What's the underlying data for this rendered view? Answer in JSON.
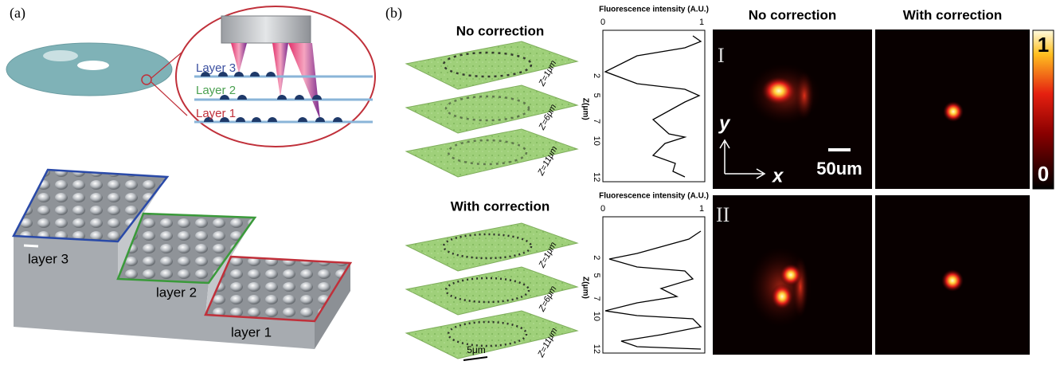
{
  "panel_a": {
    "label": "(a)",
    "zoom_layers": [
      "Layer 3",
      "Layer 2",
      "Layer 1"
    ],
    "stair_layers": [
      "layer 3",
      "layer 2",
      "layer 1"
    ]
  },
  "panel_b": {
    "label": "(b)",
    "stacks": [
      {
        "title": "No correction",
        "depths": [
          "Z=1μm",
          "Z=6μm",
          "Z=11μm"
        ]
      },
      {
        "title": "With correction",
        "depths": [
          "Z=1μm",
          "Z=6μm",
          "Z=11μm"
        ]
      }
    ],
    "stack_scale_bar": "5μm",
    "profiles": [
      {
        "x_label": "Fluorescence intensity (A.U.)",
        "x_ticks": [
          "0",
          "1"
        ],
        "y_label": "Z(μm)",
        "y_ticks": [
          "2",
          "5",
          "7",
          "10",
          "12"
        ]
      },
      {
        "x_label": "Fluorescence intensity (A.U.)",
        "x_ticks": [
          "0",
          "1"
        ],
        "y_label": "Z(μm)",
        "y_ticks": [
          "2",
          "5",
          "7",
          "10",
          "12"
        ]
      }
    ],
    "image_columns": [
      "No correction",
      "With correction"
    ],
    "rows": [
      "I",
      "II"
    ],
    "axis_labels": {
      "y": "y",
      "x": "x"
    },
    "image_scale_bar": "50um",
    "colorbar": {
      "max": "1",
      "min": "0"
    }
  }
}
